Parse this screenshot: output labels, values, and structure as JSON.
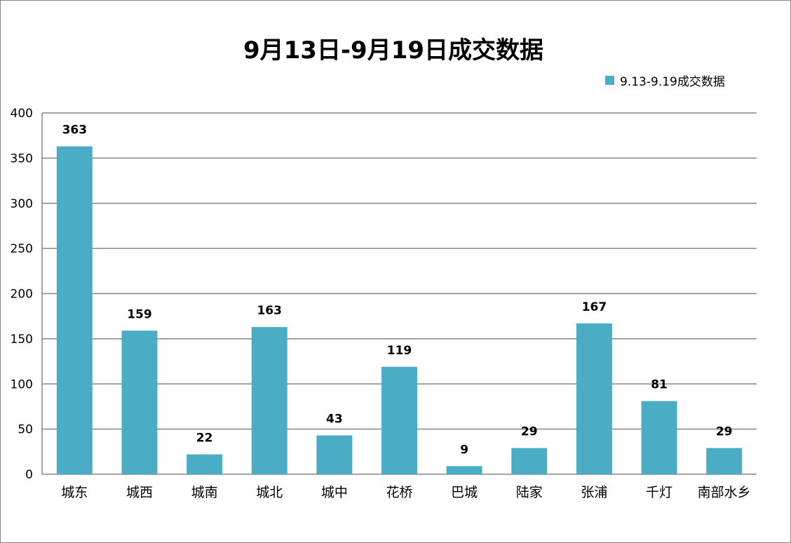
{
  "chart_data": {
    "type": "bar",
    "title": "9月13日-9月19日成交数据",
    "categories": [
      "城东",
      "城西",
      "城南",
      "城北",
      "城中",
      "花桥",
      "巴城",
      "陆家",
      "张浦",
      "千灯",
      "南部水乡"
    ],
    "series": [
      {
        "name": "9.13-9.19成交数据",
        "values": [
          363,
          159,
          22,
          163,
          43,
          119,
          9,
          29,
          167,
          81,
          29
        ],
        "color": "#4bacc6"
      }
    ],
    "ylim": [
      0,
      400
    ],
    "yticks": [
      0,
      50,
      100,
      150,
      200,
      250,
      300,
      350,
      400
    ],
    "grid": true,
    "legend": "top-right",
    "data_labels": true
  }
}
